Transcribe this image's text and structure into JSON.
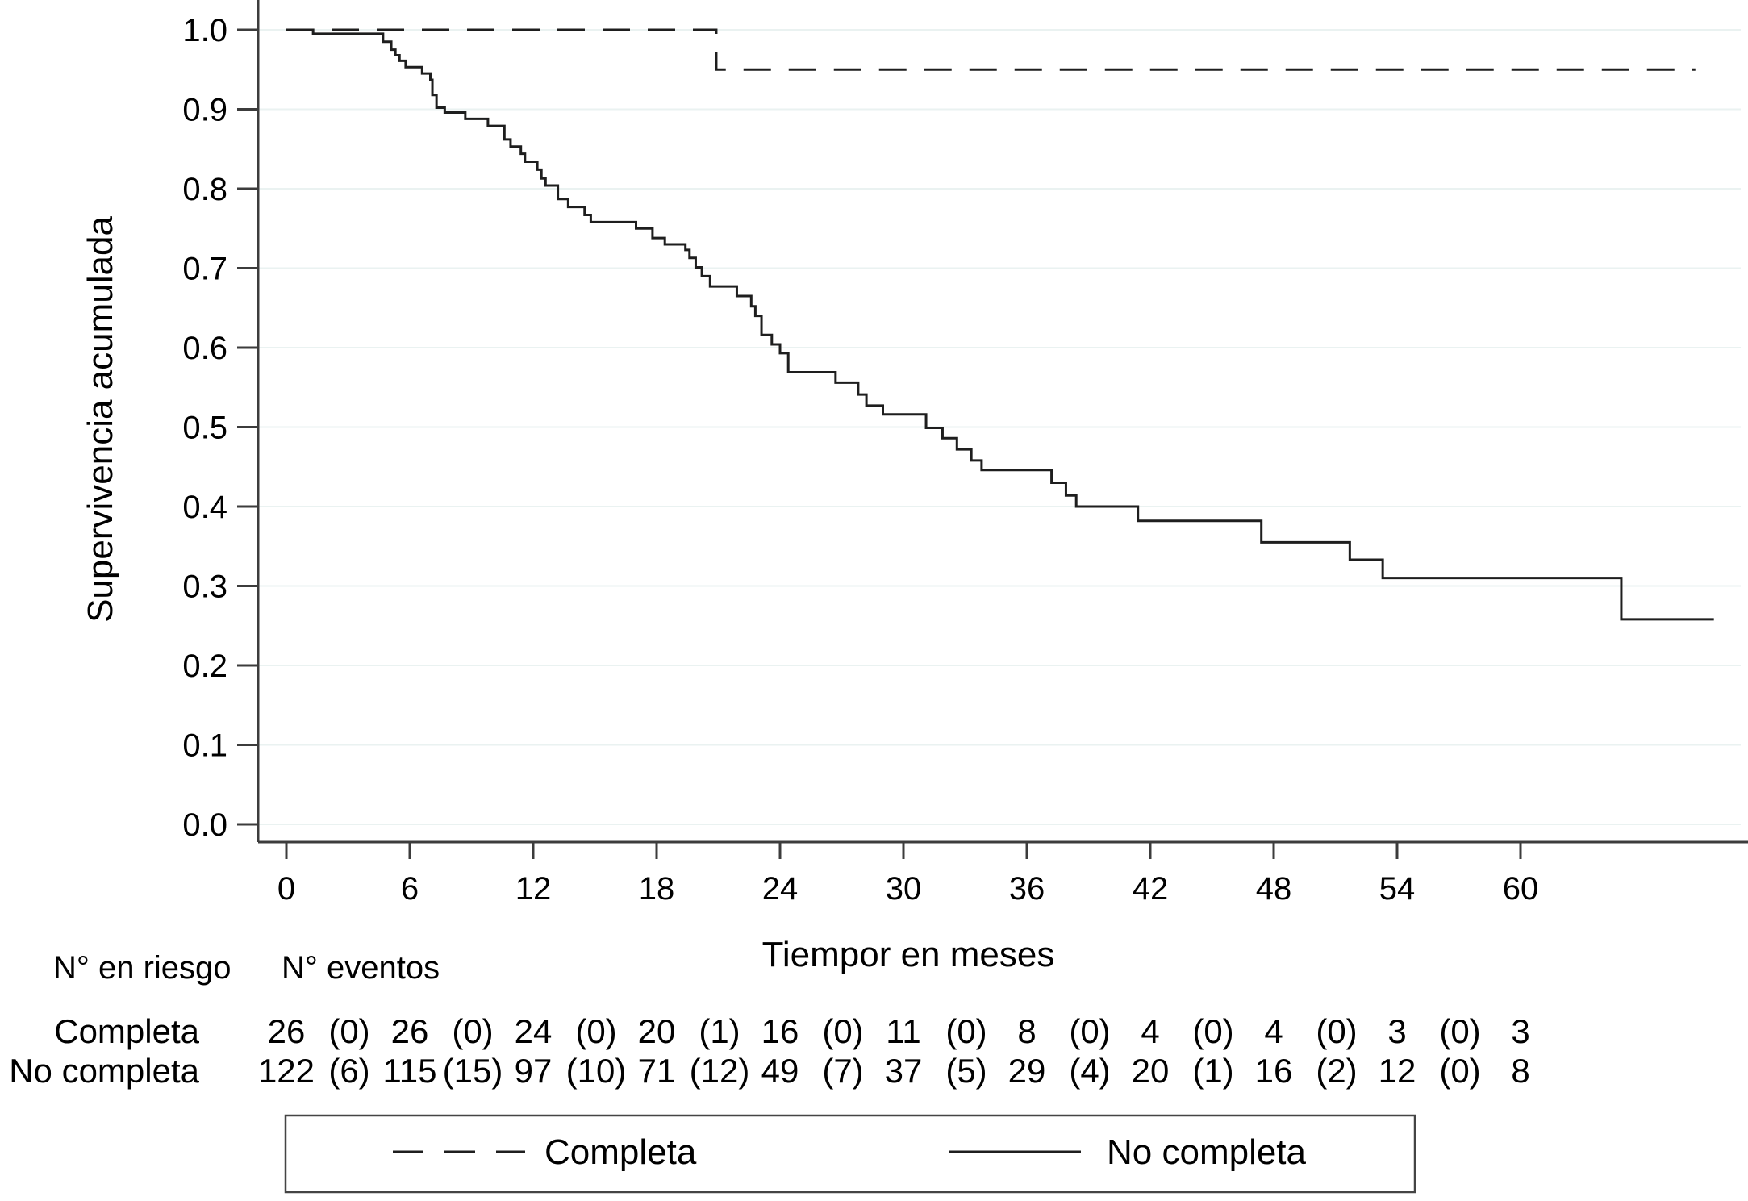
{
  "chart_data": {
    "type": "line",
    "subtype": "kaplan_meier_step",
    "title": "",
    "xlabel": "Tiempor en meses",
    "ylabel": "Supervivencia acumulada",
    "xlim": [
      0,
      69.5
    ],
    "ylim": [
      0.0,
      1.0
    ],
    "x_ticks": [
      "0",
      "6",
      "12",
      "18",
      "24",
      "30",
      "36",
      "42",
      "48",
      "54",
      "60"
    ],
    "y_ticks": [
      "1.0",
      "0.9",
      "0.8",
      "0.7",
      "0.6",
      "0.5",
      "0.4",
      "0.3",
      "0.2",
      "0.1",
      "0.0"
    ],
    "grid": true,
    "legend_position": "bottom",
    "series": [
      {
        "name": "Completa",
        "line_style": "dashed",
        "color": "#1e1e1e",
        "points": [
          [
            0,
            1.0
          ],
          [
            20.9,
            0.95
          ]
        ],
        "end_x": 68.5
      },
      {
        "name": "No completa",
        "line_style": "solid",
        "color": "#1e1e1e",
        "points": [
          [
            0,
            1.0
          ],
          [
            1.3,
            0.995
          ],
          [
            4.7,
            0.985
          ],
          [
            5.1,
            0.975
          ],
          [
            5.3,
            0.968
          ],
          [
            5.5,
            0.961
          ],
          [
            5.8,
            0.953
          ],
          [
            6.6,
            0.945
          ],
          [
            7.0,
            0.937
          ],
          [
            7.1,
            0.918
          ],
          [
            7.3,
            0.902
          ],
          [
            7.7,
            0.896
          ],
          [
            8.7,
            0.888
          ],
          [
            9.8,
            0.879
          ],
          [
            10.6,
            0.862
          ],
          [
            10.9,
            0.853
          ],
          [
            11.4,
            0.844
          ],
          [
            11.6,
            0.834
          ],
          [
            12.2,
            0.824
          ],
          [
            12.4,
            0.813
          ],
          [
            12.6,
            0.804
          ],
          [
            13.2,
            0.787
          ],
          [
            13.7,
            0.777
          ],
          [
            14.5,
            0.767
          ],
          [
            14.8,
            0.758
          ],
          [
            17.0,
            0.75
          ],
          [
            17.8,
            0.738
          ],
          [
            18.4,
            0.73
          ],
          [
            19.4,
            0.723
          ],
          [
            19.6,
            0.713
          ],
          [
            19.9,
            0.701
          ],
          [
            20.2,
            0.69
          ],
          [
            20.6,
            0.677
          ],
          [
            21.9,
            0.665
          ],
          [
            22.6,
            0.652
          ],
          [
            22.8,
            0.64
          ],
          [
            23.1,
            0.616
          ],
          [
            23.6,
            0.604
          ],
          [
            24.0,
            0.593
          ],
          [
            24.4,
            0.569
          ],
          [
            26.7,
            0.556
          ],
          [
            27.8,
            0.541
          ],
          [
            28.2,
            0.527
          ],
          [
            29.0,
            0.516
          ],
          [
            31.1,
            0.499
          ],
          [
            31.9,
            0.486
          ],
          [
            32.6,
            0.472
          ],
          [
            33.3,
            0.458
          ],
          [
            33.8,
            0.446
          ],
          [
            37.2,
            0.43
          ],
          [
            37.9,
            0.414
          ],
          [
            38.4,
            0.4
          ],
          [
            41.4,
            0.382
          ],
          [
            47.4,
            0.355
          ],
          [
            51.7,
            0.333
          ],
          [
            53.3,
            0.31
          ],
          [
            64.9,
            0.258
          ]
        ],
        "end_x": 69.4
      }
    ]
  },
  "risk_table": {
    "col1_header": "N° en riesgo",
    "col2_header": "N° eventos",
    "rows": [
      {
        "label": "Completa",
        "at_risk": [
          26,
          26,
          24,
          20,
          16,
          11,
          8,
          4,
          4,
          3,
          3
        ],
        "events": [
          0,
          0,
          0,
          1,
          0,
          0,
          0,
          0,
          0,
          0
        ]
      },
      {
        "label": "No completa",
        "at_risk": [
          122,
          115,
          97,
          71,
          49,
          37,
          29,
          20,
          16,
          12,
          8
        ],
        "events": [
          6,
          15,
          10,
          12,
          7,
          5,
          4,
          1,
          2,
          0
        ]
      }
    ]
  },
  "legend": {
    "items": [
      {
        "label": "Completa",
        "line_style": "dashed"
      },
      {
        "label": "No completa",
        "line_style": "solid"
      }
    ]
  },
  "colors": {
    "background": "#ffffff",
    "curve": "#1e1e1e",
    "axis": "#3c3c3c",
    "grid": "#eaf2f1",
    "text": "#000000",
    "legend_border": "#444444"
  }
}
